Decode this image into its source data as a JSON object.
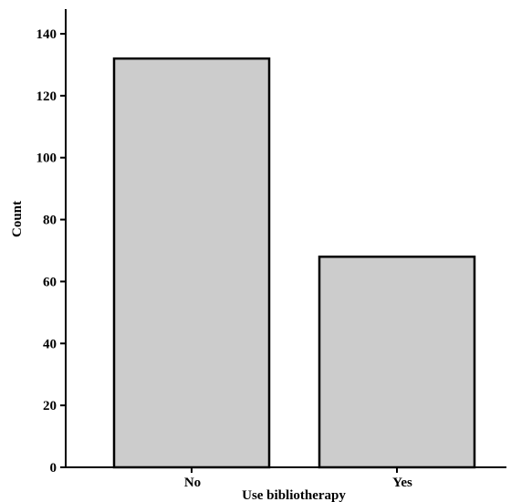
{
  "chart_data": {
    "type": "bar",
    "categories": [
      "No",
      "Yes"
    ],
    "values": [
      132,
      68
    ],
    "xlabel": "Use bibliotherapy",
    "ylabel": "Count",
    "ylim": [
      0,
      140
    ],
    "yticks": [
      "0",
      "20",
      "40",
      "60",
      "80",
      "100",
      "120",
      "140"
    ],
    "bar_color": "#cccccc",
    "grid": false
  }
}
